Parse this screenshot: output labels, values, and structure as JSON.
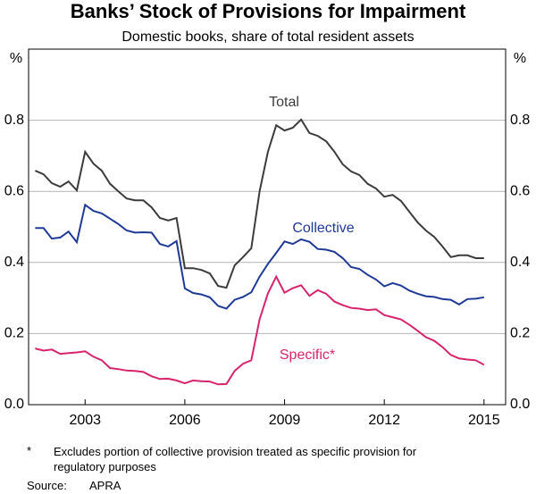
{
  "chart_data": {
    "type": "line",
    "title": "Banks’ Stock of Provisions for Impairment",
    "subtitle": "Domestic books, share of total resident assets",
    "y_unit": "%",
    "x": [
      2001.5,
      2001.75,
      2002,
      2002.25,
      2002.5,
      2002.75,
      2003,
      2003.25,
      2003.5,
      2003.75,
      2004,
      2004.25,
      2004.5,
      2004.75,
      2005,
      2005.25,
      2005.5,
      2005.75,
      2006,
      2006.25,
      2006.5,
      2006.75,
      2007,
      2007.25,
      2007.5,
      2007.75,
      2008,
      2008.25,
      2008.5,
      2008.75,
      2009,
      2009.25,
      2009.5,
      2009.75,
      2010,
      2010.25,
      2010.5,
      2010.75,
      2011,
      2011.25,
      2011.5,
      2011.75,
      2012,
      2012.25,
      2012.5,
      2012.75,
      2013,
      2013.25,
      2013.5,
      2013.75,
      2014,
      2014.25,
      2014.5,
      2014.75,
      2015
    ],
    "series": [
      {
        "name": "Total",
        "color": "#3c3c3c",
        "values": [
          0.658,
          0.648,
          0.623,
          0.613,
          0.628,
          0.603,
          0.711,
          0.678,
          0.658,
          0.621,
          0.6,
          0.58,
          0.575,
          0.575,
          0.555,
          0.525,
          0.518,
          0.525,
          0.384,
          0.384,
          0.379,
          0.369,
          0.334,
          0.329,
          0.392,
          0.415,
          0.44,
          0.6,
          0.711,
          0.786,
          0.771,
          0.779,
          0.802,
          0.764,
          0.756,
          0.741,
          0.711,
          0.676,
          0.656,
          0.646,
          0.621,
          0.608,
          0.585,
          0.59,
          0.573,
          0.543,
          0.513,
          0.49,
          0.472,
          0.445,
          0.415,
          0.42,
          0.42,
          0.412,
          0.412
        ]
      },
      {
        "name": "Collective",
        "color": "#1e3a96",
        "values": [
          0.497,
          0.497,
          0.467,
          0.47,
          0.487,
          0.457,
          0.562,
          0.545,
          0.538,
          0.523,
          0.508,
          0.49,
          0.484,
          0.485,
          0.484,
          0.452,
          0.445,
          0.46,
          0.327,
          0.314,
          0.31,
          0.302,
          0.278,
          0.27,
          0.295,
          0.303,
          0.316,
          0.36,
          0.396,
          0.427,
          0.459,
          0.452,
          0.465,
          0.458,
          0.438,
          0.436,
          0.43,
          0.412,
          0.387,
          0.382,
          0.365,
          0.352,
          0.333,
          0.342,
          0.335,
          0.321,
          0.312,
          0.305,
          0.303,
          0.297,
          0.295,
          0.282,
          0.297,
          0.298,
          0.302
        ]
      },
      {
        "name": "Specific*",
        "color": "#d6246e",
        "values": [
          0.158,
          0.152,
          0.155,
          0.143,
          0.145,
          0.147,
          0.15,
          0.135,
          0.125,
          0.103,
          0.1,
          0.096,
          0.095,
          0.092,
          0.08,
          0.072,
          0.073,
          0.068,
          0.06,
          0.068,
          0.066,
          0.065,
          0.057,
          0.058,
          0.095,
          0.115,
          0.125,
          0.24,
          0.313,
          0.36,
          0.315,
          0.328,
          0.336,
          0.306,
          0.322,
          0.312,
          0.29,
          0.28,
          0.272,
          0.27,
          0.266,
          0.268,
          0.252,
          0.246,
          0.24,
          0.225,
          0.208,
          0.19,
          0.18,
          0.162,
          0.14,
          0.13,
          0.127,
          0.125,
          0.112
        ]
      }
    ],
    "xlim": [
      2001.3,
      2015.65
    ],
    "xticks": [
      2003,
      2006,
      2009,
      2012,
      2015
    ],
    "ylim": [
      0,
      1
    ],
    "yticks": [
      {
        "value": 0,
        "label": "0.0"
      },
      0.2,
      0.4,
      0.6,
      0.8
    ],
    "grid": true,
    "footnote": {
      "marker": "*",
      "text": "Excludes portion of collective provision treated as specific provision for regulatory purposes"
    },
    "source": {
      "label": "Source:",
      "text": "APRA"
    }
  }
}
